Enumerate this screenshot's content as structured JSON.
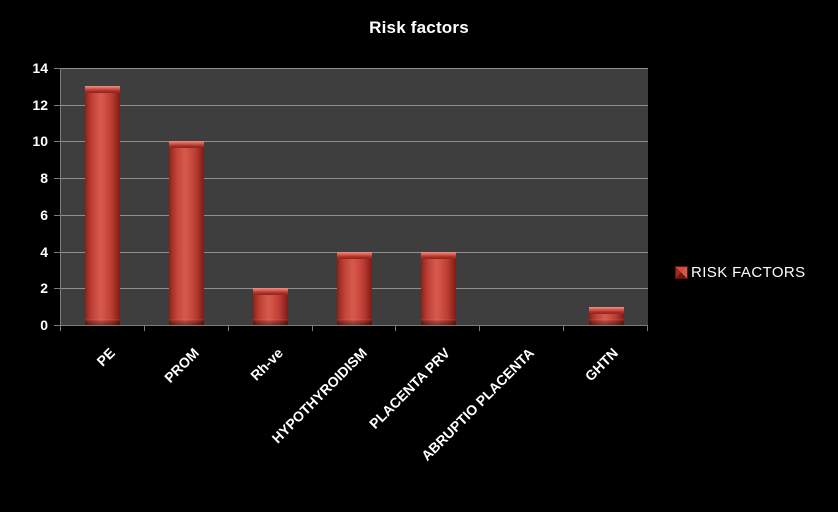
{
  "title": "Risk factors",
  "legend": {
    "label": "RISK FACTORS",
    "marker_color": "#c0392b"
  },
  "colors": {
    "background": "#000000",
    "plot_background": "#3e3e3e",
    "gridline": "#8f8f8f",
    "axis": "#7d7d7d",
    "bar": "#c0392b",
    "text": "#ffffff"
  },
  "chart_data": {
    "type": "bar",
    "title": "Risk factors",
    "categories": [
      "PE",
      "PROM",
      "Rh-ve",
      "HYPOTHYROIDISM",
      "PLACENTA PRV",
      "ABRUPTIO PLACENTA",
      "GHTN"
    ],
    "series": [
      {
        "name": "RISK FACTORS",
        "values": [
          13,
          10,
          2,
          4,
          4,
          0,
          1
        ]
      }
    ],
    "xlabel": "",
    "ylabel": "",
    "ylim": [
      0,
      14
    ],
    "yticks": [
      0,
      2,
      4,
      6,
      8,
      10,
      12,
      14
    ],
    "grid": true,
    "legend_position": "right"
  }
}
